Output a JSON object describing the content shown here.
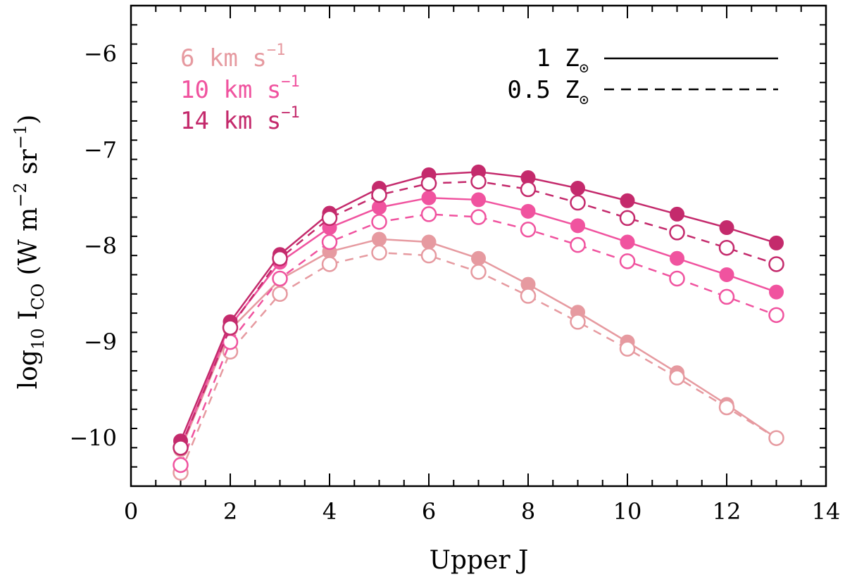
{
  "chart_data": {
    "type": "line",
    "title": "",
    "xlabel": "Upper J",
    "ylabel": {
      "prefix": "log",
      "log_sub": "10",
      "i": " I",
      "i_sub": "CO",
      "units": " (W m",
      "m_exp": "−2",
      "sr": " sr",
      "sr_exp": "−1",
      "close": ")"
    },
    "xlim": [
      0,
      14
    ],
    "ylim": [
      -10.5,
      -5.5
    ],
    "xticks": [
      0,
      2,
      4,
      6,
      8,
      10,
      12,
      14
    ],
    "xtick_labels": [
      "0",
      "2",
      "4",
      "6",
      "8",
      "10",
      "12",
      "14"
    ],
    "yticks": [
      -10,
      -9,
      -8,
      -7,
      -6
    ],
    "ytick_labels": [
      "−10",
      "−9",
      "−8",
      "−7",
      "−6"
    ],
    "x": [
      1,
      2,
      3,
      4,
      5,
      6,
      7,
      8,
      9,
      10,
      11,
      12,
      13
    ],
    "series": [
      {
        "name": "6 km s-1, 1 Zsun",
        "color": "#e69aa0",
        "linestyle": "solid",
        "marker": "filled",
        "values": [
          -10.12,
          -8.87,
          -8.35,
          -8.06,
          -7.93,
          -7.96,
          -8.13,
          -8.4,
          -8.69,
          -9.0,
          -9.32,
          -9.65,
          -10.0
        ]
      },
      {
        "name": "6 km s-1, 0.5 Zsun",
        "color": "#e69aa0",
        "linestyle": "dashed",
        "marker": "open",
        "values": [
          -10.36,
          -9.1,
          -8.5,
          -8.19,
          -8.07,
          -8.1,
          -8.27,
          -8.52,
          -8.79,
          -9.07,
          -9.37,
          -9.68,
          -10.0
        ]
      },
      {
        "name": "10 km s-1, 1 Zsun",
        "color": "#f0539f",
        "linestyle": "solid",
        "marker": "filled",
        "values": [
          -10.09,
          -8.83,
          -8.17,
          -7.81,
          -7.6,
          -7.5,
          -7.52,
          -7.64,
          -7.79,
          -7.96,
          -8.13,
          -8.3,
          -8.48
        ]
      },
      {
        "name": "10 km s-1, 0.5 Zsun",
        "color": "#f0539f",
        "linestyle": "dashed",
        "marker": "open",
        "values": [
          -10.28,
          -9.0,
          -8.34,
          -7.96,
          -7.75,
          -7.67,
          -7.7,
          -7.83,
          -7.99,
          -8.16,
          -8.34,
          -8.53,
          -8.72
        ]
      },
      {
        "name": "14 km s-1, 1 Zsun",
        "color": "#c42a6c",
        "linestyle": "solid",
        "marker": "filled",
        "values": [
          -10.03,
          -8.79,
          -8.09,
          -7.66,
          -7.4,
          -7.26,
          -7.23,
          -7.29,
          -7.4,
          -7.53,
          -7.67,
          -7.81,
          -7.97
        ]
      },
      {
        "name": "14 km s-1, 0.5 Zsun",
        "color": "#c42a6c",
        "linestyle": "dashed",
        "marker": "open",
        "values": [
          -10.1,
          -8.85,
          -8.13,
          -7.71,
          -7.47,
          -7.35,
          -7.33,
          -7.41,
          -7.55,
          -7.71,
          -7.86,
          -8.02,
          -8.19
        ]
      }
    ],
    "legend_velocity": [
      {
        "text": "6 km s",
        "exp": "−1",
        "color": "#e69aa0"
      },
      {
        "text": "10 km s",
        "exp": "−1",
        "color": "#f0539f"
      },
      {
        "text": "14 km s",
        "exp": "−1",
        "color": "#c42a6c"
      }
    ],
    "legend_metallicity": [
      {
        "text": "1 Z",
        "sub": "⊙",
        "linestyle": "solid"
      },
      {
        "text": "0.5 Z",
        "sub": "⊙",
        "linestyle": "dashed"
      }
    ]
  }
}
